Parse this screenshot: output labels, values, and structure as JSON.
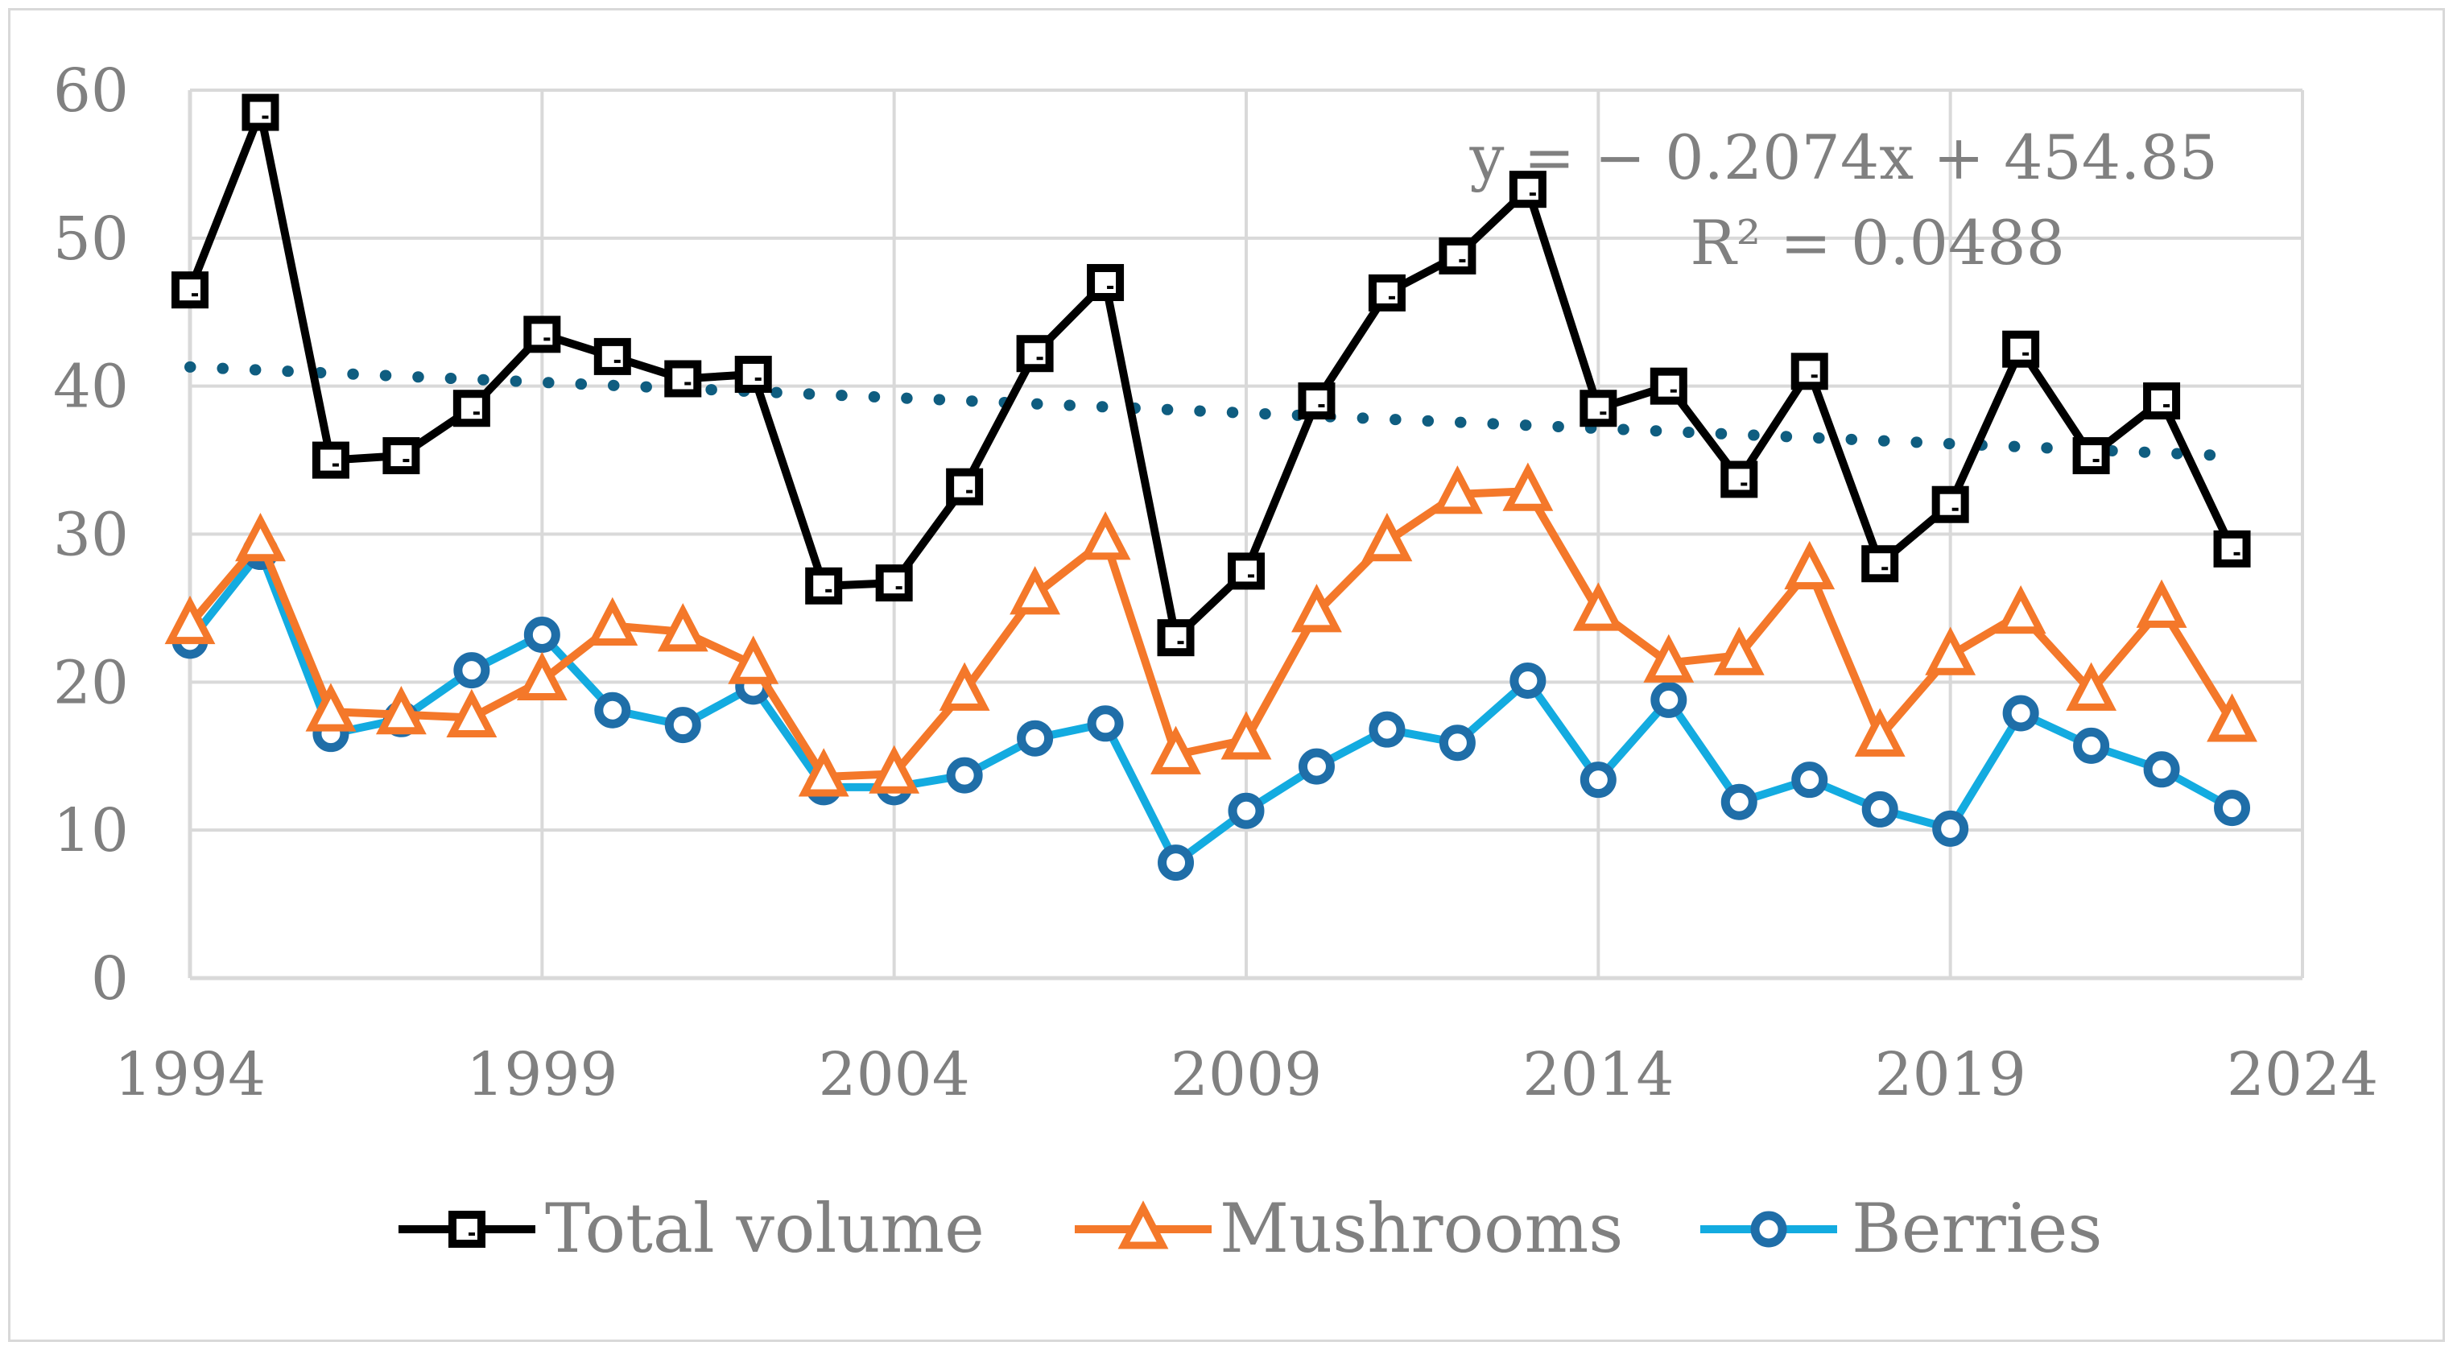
{
  "chart_data": {
    "type": "line",
    "title": "",
    "xlabel": "",
    "ylabel": "",
    "xlim": [
      1994,
      2024
    ],
    "ylim": [
      0,
      60
    ],
    "x_ticks": [
      "1994",
      "1999",
      "2004",
      "2009",
      "2014",
      "2019",
      "2024"
    ],
    "y_ticks": [
      "0",
      "10",
      "20",
      "30",
      "40",
      "50",
      "60"
    ],
    "grid": true,
    "legend_position": "bottom",
    "x": [
      1994,
      1995,
      1996,
      1997,
      1998,
      1999,
      2000,
      2001,
      2002,
      2003,
      2004,
      2005,
      2006,
      2007,
      2008,
      2009,
      2010,
      2011,
      2012,
      2013,
      2014,
      2015,
      2016,
      2017,
      2018,
      2019,
      2020,
      2021,
      2022,
      2023
    ],
    "series": [
      {
        "name": "Total volume",
        "color": "#000000",
        "marker": "square",
        "values": [
          46.5,
          58.5,
          35.0,
          35.3,
          38.5,
          43.5,
          42.0,
          40.5,
          40.8,
          26.5,
          26.7,
          33.2,
          42.2,
          47.0,
          23.0,
          27.5,
          39.0,
          46.3,
          48.8,
          53.3,
          38.5,
          40.0,
          33.7,
          41.0,
          28.0,
          32.0,
          42.5,
          35.3,
          39.0,
          29.0
        ]
      },
      {
        "name": "Mushrooms",
        "color": "#f4782a",
        "marker": "triangle",
        "values": [
          23.9,
          29.5,
          18.0,
          17.8,
          17.6,
          20.1,
          23.8,
          23.4,
          21.2,
          13.6,
          13.8,
          19.4,
          25.9,
          29.6,
          15.1,
          16.1,
          24.7,
          29.5,
          32.7,
          32.9,
          24.8,
          21.3,
          21.8,
          27.6,
          16.3,
          21.8,
          24.6,
          19.4,
          25.0,
          17.3
        ]
      },
      {
        "name": "Berries",
        "color": "#13abe0",
        "marker_edge": "#1f6ea8",
        "marker": "circle",
        "values": [
          22.8,
          28.8,
          16.5,
          17.5,
          20.8,
          23.2,
          18.1,
          17.1,
          19.7,
          12.9,
          12.9,
          13.7,
          16.2,
          17.2,
          7.8,
          11.3,
          14.3,
          16.8,
          15.9,
          20.1,
          13.4,
          18.8,
          11.9,
          13.4,
          11.4,
          10.1,
          17.9,
          15.7,
          14.1,
          11.5
        ]
      }
    ],
    "trendline": {
      "series": "Total volume",
      "slope": -0.2074,
      "intercept": 454.85,
      "from": 1994,
      "to": 2023,
      "color": "#0f5d80",
      "equation": "y = − 0.2074x + 454.85",
      "r_squared": "R² = 0.0488"
    }
  }
}
